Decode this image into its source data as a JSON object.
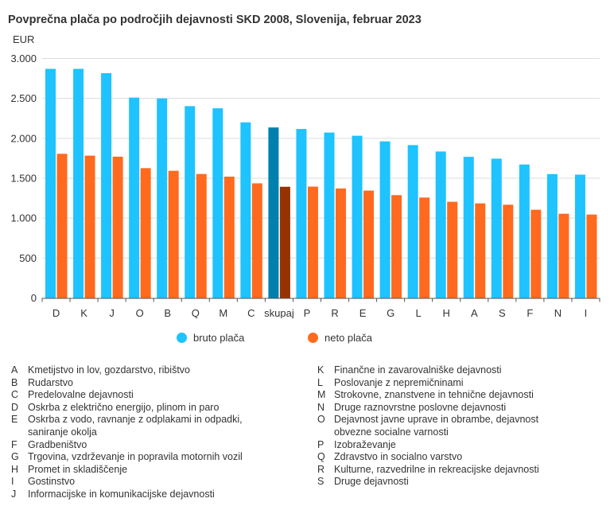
{
  "chart_data": {
    "type": "bar",
    "title": "Povprečna plača po področjih dejavnosti SKD 2008, Slovenija, februar 2023",
    "ylabel": "EUR",
    "xlabel": "",
    "ylim": [
      0,
      3000
    ],
    "yticks": [
      0,
      500,
      1000,
      1500,
      2000,
      2500,
      3000
    ],
    "ytick_labels": [
      "0",
      "500",
      "1.000",
      "1.500",
      "2.000",
      "2.500",
      "3.000"
    ],
    "grid": true,
    "legend_position": "bottom",
    "highlight_category": "skupaj",
    "categories": [
      "D",
      "K",
      "J",
      "O",
      "B",
      "Q",
      "M",
      "C",
      "skupaj",
      "P",
      "R",
      "E",
      "G",
      "L",
      "H",
      "A",
      "S",
      "F",
      "N",
      "I"
    ],
    "series": [
      {
        "name": "bruto plača",
        "color": "#1EC3FF",
        "highlight_color": "#0080AE",
        "values": [
          2870,
          2870,
          2816,
          2510,
          2500,
          2403,
          2376,
          2200,
          2136,
          2117,
          2072,
          2032,
          1962,
          1915,
          1835,
          1768,
          1745,
          1672,
          1552,
          1545
        ]
      },
      {
        "name": "neto plača",
        "color": "#FF6A1F",
        "highlight_color": "#943300",
        "values": [
          1806,
          1783,
          1770,
          1626,
          1593,
          1553,
          1520,
          1436,
          1393,
          1395,
          1372,
          1345,
          1288,
          1258,
          1205,
          1185,
          1168,
          1105,
          1055,
          1045
        ]
      }
    ]
  },
  "header": {
    "title": "Povprečna plača po področjih dejavnosti SKD 2008, Slovenija, februar 2023",
    "unit": "EUR"
  },
  "legend": [
    {
      "label": "bruto plača",
      "color": "#1EC3FF"
    },
    {
      "label": "neto plača",
      "color": "#FF6A1F"
    }
  ],
  "notes_left": [
    {
      "code": "A",
      "text": "Kmetijstvo in lov, gozdarstvo, ribištvo"
    },
    {
      "code": "B",
      "text": "Rudarstvo"
    },
    {
      "code": "C",
      "text": "Predelovalne dejavnosti"
    },
    {
      "code": "D",
      "text": "Oskrba z električno energijo, plinom in paro"
    },
    {
      "code": "E",
      "text": "Oskrba z vodo, ravnanje z odplakami in odpadki,\nsaniranje okolja"
    },
    {
      "code": "F",
      "text": "Gradbeništvo"
    },
    {
      "code": "G",
      "text": "Trgovina, vzdrževanje in popravila motornih vozil"
    },
    {
      "code": "H",
      "text": "Promet in skladiščenje"
    },
    {
      "code": "I",
      "text": "Gostinstvo"
    },
    {
      "code": "J",
      "text": "Informacijske in komunikacijske dejavnosti"
    }
  ],
  "notes_right": [
    {
      "code": "K",
      "text": "Finančne in zavarovalniške dejavnosti"
    },
    {
      "code": "L",
      "text": "Poslovanje z nepremičninami"
    },
    {
      "code": "M",
      "text": "Strokovne, znanstvene in tehnične dejavnosti"
    },
    {
      "code": "N",
      "text": "Druge raznovrstne poslovne dejavnosti"
    },
    {
      "code": "O",
      "text": "Dejavnost javne uprave in obrambe, dejavnost\nobvezne socialne varnosti"
    },
    {
      "code": "P",
      "text": "Izobraževanje"
    },
    {
      "code": "Q",
      "text": "Zdravstvo in socialno varstvo"
    },
    {
      "code": "R",
      "text": "Kulturne, razvedrilne in rekreacijske dejavnosti"
    },
    {
      "code": "S",
      "text": "Druge dejavnosti"
    }
  ]
}
